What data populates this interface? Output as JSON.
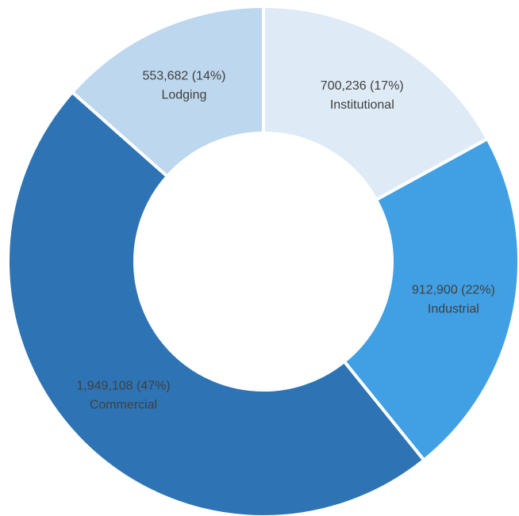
{
  "chart_data": {
    "type": "donut",
    "categories": [
      "Institutional",
      "Industrial",
      "Commercial",
      "Lodging"
    ],
    "values": [
      700236,
      912900,
      1949108,
      553682
    ],
    "value_labels": [
      "700,236 (17%)",
      "912,900 (22%)",
      "1,949,108 (47%)",
      "553,682 (14%)"
    ],
    "colors": [
      "#deebf7",
      "#41a0e4",
      "#2e74b5",
      "#bdd7ee"
    ]
  }
}
